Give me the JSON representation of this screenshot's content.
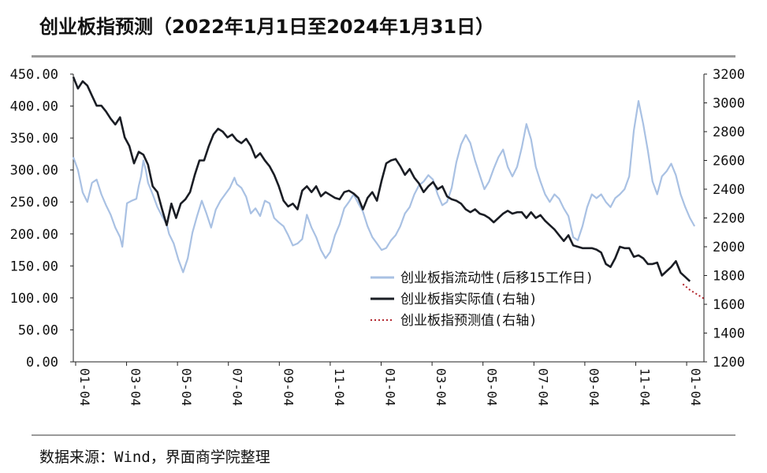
{
  "title": "创业板指预测（2022年1月1日至2024年1月31日）",
  "source": "数据来源：Wind，界面商学院整理",
  "chart_data": {
    "type": "line",
    "x_ticks": [
      "01-04",
      "03-04",
      "05-04",
      "07-04",
      "09-04",
      "11-04",
      "01-04",
      "03-04",
      "05-04",
      "07-04",
      "09-04",
      "11-04",
      "01-04"
    ],
    "y_left": {
      "min": 0,
      "max": 450,
      "ticks": [
        "0.00",
        "50.00",
        "100.00",
        "150.00",
        "200.00",
        "250.00",
        "300.00",
        "350.00",
        "400.00",
        "450.00"
      ]
    },
    "y_right": {
      "min": 1200,
      "max": 3200,
      "ticks": [
        "1200",
        "1400",
        "1600",
        "1800",
        "2000",
        "2200",
        "2400",
        "2600",
        "2800",
        "3000",
        "3200"
      ]
    },
    "legend_position": "lower-right",
    "grid": false,
    "series": [
      {
        "name": "创业板指流动性(后移15工作日)",
        "axis": "left",
        "color": "#a9c1e3",
        "style": "solid",
        "points": [
          [
            0,
            320
          ],
          [
            0.2,
            300
          ],
          [
            0.4,
            265
          ],
          [
            0.6,
            250
          ],
          [
            0.8,
            280
          ],
          [
            1.0,
            285
          ],
          [
            1.2,
            262
          ],
          [
            1.4,
            245
          ],
          [
            1.6,
            230
          ],
          [
            1.8,
            210
          ],
          [
            2.0,
            195
          ],
          [
            2.1,
            180
          ],
          [
            2.2,
            215
          ],
          [
            2.3,
            248
          ],
          [
            2.5,
            252
          ],
          [
            2.7,
            255
          ],
          [
            2.8,
            275
          ],
          [
            2.9,
            290
          ],
          [
            3.0,
            315
          ],
          [
            3.1,
            300
          ],
          [
            3.2,
            280
          ],
          [
            3.4,
            262
          ],
          [
            3.6,
            242
          ],
          [
            3.8,
            228
          ],
          [
            4.0,
            215
          ],
          [
            4.1,
            200
          ],
          [
            4.3,
            185
          ],
          [
            4.5,
            160
          ],
          [
            4.7,
            140
          ],
          [
            4.9,
            162
          ],
          [
            5.1,
            202
          ],
          [
            5.3,
            228
          ],
          [
            5.5,
            252
          ],
          [
            5.7,
            232
          ],
          [
            5.9,
            210
          ],
          [
            6.1,
            238
          ],
          [
            6.3,
            252
          ],
          [
            6.5,
            262
          ],
          [
            6.7,
            272
          ],
          [
            6.9,
            288
          ],
          [
            7.0,
            278
          ],
          [
            7.2,
            272
          ],
          [
            7.4,
            258
          ],
          [
            7.6,
            232
          ],
          [
            7.8,
            240
          ],
          [
            8.0,
            228
          ],
          [
            8.2,
            252
          ],
          [
            8.4,
            248
          ],
          [
            8.6,
            225
          ],
          [
            8.8,
            218
          ],
          [
            9.0,
            212
          ],
          [
            9.2,
            198
          ],
          [
            9.4,
            182
          ],
          [
            9.6,
            185
          ],
          [
            9.8,
            192
          ],
          [
            10.0,
            230
          ],
          [
            10.2,
            210
          ],
          [
            10.4,
            195
          ],
          [
            10.6,
            175
          ],
          [
            10.8,
            162
          ],
          [
            11.0,
            172
          ],
          [
            11.2,
            198
          ],
          [
            11.4,
            215
          ],
          [
            11.6,
            240
          ],
          [
            11.8,
            250
          ],
          [
            12.0,
            262
          ],
          [
            12.2,
            248
          ],
          [
            12.4,
            235
          ],
          [
            12.6,
            212
          ],
          [
            12.8,
            195
          ],
          [
            13.0,
            185
          ],
          [
            13.2,
            175
          ],
          [
            13.4,
            178
          ],
          [
            13.6,
            190
          ],
          [
            13.8,
            198
          ],
          [
            14.0,
            212
          ],
          [
            14.2,
            232
          ],
          [
            14.4,
            242
          ],
          [
            14.6,
            262
          ],
          [
            14.8,
            276
          ],
          [
            15.0,
            282
          ],
          [
            15.2,
            292
          ],
          [
            15.4,
            285
          ],
          [
            15.6,
            262
          ],
          [
            15.8,
            245
          ],
          [
            16.0,
            250
          ],
          [
            16.2,
            272
          ],
          [
            16.4,
            312
          ],
          [
            16.6,
            340
          ],
          [
            16.8,
            355
          ],
          [
            17.0,
            342
          ],
          [
            17.2,
            315
          ],
          [
            17.4,
            292
          ],
          [
            17.6,
            270
          ],
          [
            17.8,
            282
          ],
          [
            18.0,
            302
          ],
          [
            18.2,
            320
          ],
          [
            18.4,
            332
          ],
          [
            18.6,
            305
          ],
          [
            18.8,
            290
          ],
          [
            19.0,
            305
          ],
          [
            19.2,
            335
          ],
          [
            19.4,
            372
          ],
          [
            19.6,
            348
          ],
          [
            19.8,
            305
          ],
          [
            20.0,
            282
          ],
          [
            20.2,
            262
          ],
          [
            20.4,
            250
          ],
          [
            20.6,
            262
          ],
          [
            20.8,
            255
          ],
          [
            21.0,
            240
          ],
          [
            21.2,
            228
          ],
          [
            21.4,
            195
          ],
          [
            21.6,
            190
          ],
          [
            21.8,
            212
          ],
          [
            22.0,
            242
          ],
          [
            22.2,
            262
          ],
          [
            22.4,
            256
          ],
          [
            22.6,
            262
          ],
          [
            22.8,
            250
          ],
          [
            23.0,
            242
          ],
          [
            23.2,
            256
          ],
          [
            23.4,
            262
          ],
          [
            23.6,
            270
          ],
          [
            23.8,
            290
          ],
          [
            24.0,
            362
          ],
          [
            24.2,
            408
          ],
          [
            24.4,
            372
          ],
          [
            24.6,
            330
          ],
          [
            24.8,
            282
          ],
          [
            25.0,
            262
          ],
          [
            25.2,
            290
          ],
          [
            25.4,
            298
          ],
          [
            25.6,
            310
          ],
          [
            25.8,
            292
          ],
          [
            26.0,
            262
          ],
          [
            26.2,
            242
          ],
          [
            26.4,
            225
          ],
          [
            26.6,
            212
          ]
        ]
      },
      {
        "name": "创业板指实际值(右轴)",
        "axis": "right",
        "color": "#1a1d24",
        "style": "solid",
        "points": [
          [
            0,
            3180
          ],
          [
            0.2,
            3100
          ],
          [
            0.4,
            3150
          ],
          [
            0.6,
            3120
          ],
          [
            0.8,
            3050
          ],
          [
            1.0,
            2980
          ],
          [
            1.2,
            2980
          ],
          [
            1.4,
            2940
          ],
          [
            1.6,
            2890
          ],
          [
            1.8,
            2850
          ],
          [
            2.0,
            2900
          ],
          [
            2.2,
            2760
          ],
          [
            2.4,
            2700
          ],
          [
            2.6,
            2580
          ],
          [
            2.8,
            2660
          ],
          [
            3.0,
            2640
          ],
          [
            3.2,
            2570
          ],
          [
            3.4,
            2420
          ],
          [
            3.6,
            2380
          ],
          [
            3.8,
            2260
          ],
          [
            4.0,
            2150
          ],
          [
            4.2,
            2300
          ],
          [
            4.4,
            2200
          ],
          [
            4.6,
            2300
          ],
          [
            4.8,
            2330
          ],
          [
            5.0,
            2380
          ],
          [
            5.2,
            2500
          ],
          [
            5.4,
            2600
          ],
          [
            5.6,
            2600
          ],
          [
            5.8,
            2700
          ],
          [
            6.0,
            2780
          ],
          [
            6.2,
            2820
          ],
          [
            6.4,
            2800
          ],
          [
            6.6,
            2760
          ],
          [
            6.8,
            2780
          ],
          [
            7.0,
            2740
          ],
          [
            7.2,
            2720
          ],
          [
            7.4,
            2750
          ],
          [
            7.6,
            2700
          ],
          [
            7.8,
            2620
          ],
          [
            8.0,
            2650
          ],
          [
            8.2,
            2600
          ],
          [
            8.4,
            2560
          ],
          [
            8.6,
            2500
          ],
          [
            8.8,
            2420
          ],
          [
            9.0,
            2320
          ],
          [
            9.2,
            2280
          ],
          [
            9.4,
            2300
          ],
          [
            9.6,
            2260
          ],
          [
            9.8,
            2390
          ],
          [
            10.0,
            2420
          ],
          [
            10.2,
            2380
          ],
          [
            10.4,
            2420
          ],
          [
            10.6,
            2350
          ],
          [
            10.8,
            2380
          ],
          [
            11.0,
            2360
          ],
          [
            11.2,
            2340
          ],
          [
            11.4,
            2330
          ],
          [
            11.6,
            2380
          ],
          [
            11.8,
            2390
          ],
          [
            12.0,
            2370
          ],
          [
            12.2,
            2340
          ],
          [
            12.4,
            2260
          ],
          [
            12.6,
            2340
          ],
          [
            12.8,
            2380
          ],
          [
            13.0,
            2320
          ],
          [
            13.2,
            2460
          ],
          [
            13.4,
            2580
          ],
          [
            13.6,
            2600
          ],
          [
            13.8,
            2610
          ],
          [
            14.0,
            2560
          ],
          [
            14.2,
            2500
          ],
          [
            14.4,
            2540
          ],
          [
            14.6,
            2480
          ],
          [
            14.8,
            2440
          ],
          [
            15.0,
            2380
          ],
          [
            15.2,
            2420
          ],
          [
            15.4,
            2450
          ],
          [
            15.6,
            2400
          ],
          [
            15.8,
            2420
          ],
          [
            16.0,
            2350
          ],
          [
            16.2,
            2330
          ],
          [
            16.4,
            2320
          ],
          [
            16.6,
            2300
          ],
          [
            16.8,
            2260
          ],
          [
            17.0,
            2240
          ],
          [
            17.2,
            2260
          ],
          [
            17.4,
            2230
          ],
          [
            17.6,
            2220
          ],
          [
            17.8,
            2200
          ],
          [
            18.0,
            2170
          ],
          [
            18.2,
            2200
          ],
          [
            18.4,
            2230
          ],
          [
            18.6,
            2250
          ],
          [
            18.8,
            2230
          ],
          [
            19.0,
            2240
          ],
          [
            19.2,
            2240
          ],
          [
            19.4,
            2200
          ],
          [
            19.6,
            2240
          ],
          [
            19.8,
            2200
          ],
          [
            20.0,
            2220
          ],
          [
            20.2,
            2180
          ],
          [
            20.4,
            2150
          ],
          [
            20.6,
            2120
          ],
          [
            20.8,
            2080
          ],
          [
            21.0,
            2040
          ],
          [
            21.2,
            2080
          ],
          [
            21.4,
            2010
          ],
          [
            21.6,
            2000
          ],
          [
            21.8,
            1990
          ],
          [
            22.0,
            1990
          ],
          [
            22.2,
            1990
          ],
          [
            22.4,
            1980
          ],
          [
            22.6,
            1960
          ],
          [
            22.8,
            1880
          ],
          [
            23.0,
            1860
          ],
          [
            23.2,
            1920
          ],
          [
            23.4,
            2000
          ],
          [
            23.6,
            1990
          ],
          [
            23.8,
            1990
          ],
          [
            24.0,
            1930
          ],
          [
            24.2,
            1940
          ],
          [
            24.4,
            1920
          ],
          [
            24.6,
            1880
          ],
          [
            24.8,
            1880
          ],
          [
            25.0,
            1890
          ],
          [
            25.2,
            1800
          ],
          [
            25.4,
            1830
          ],
          [
            25.6,
            1860
          ],
          [
            25.8,
            1900
          ],
          [
            26.0,
            1820
          ],
          [
            26.2,
            1790
          ],
          [
            26.4,
            1760
          ]
        ]
      },
      {
        "name": "创业板指预测值(右轴)",
        "axis": "right",
        "color": "#b3262e",
        "style": "dotted",
        "points": [
          [
            26.1,
            1740
          ],
          [
            26.4,
            1700
          ],
          [
            26.8,
            1660
          ],
          [
            27.0,
            1640
          ]
        ]
      }
    ]
  }
}
